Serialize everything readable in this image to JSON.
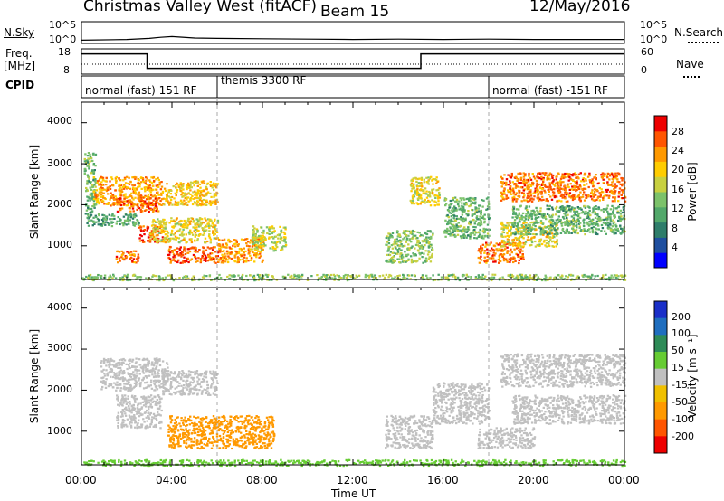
{
  "header": {
    "title": "Christmas Valley West (fitACF)",
    "beam": "Beam 15",
    "date": "12/May/2016"
  },
  "noise_panel": {
    "left_label": "N.Sky",
    "right_label": "N.Search",
    "left_ticks": [
      "10^5",
      "10^0"
    ],
    "right_ticks": [
      "10^5",
      "10^0"
    ]
  },
  "freq_panel": {
    "left_label_line1": "Freq.",
    "left_label_line2": "[MHz]",
    "right_label": "Nave",
    "left_ticks": [
      "18",
      "8"
    ],
    "right_ticks": [
      "60",
      "0"
    ]
  },
  "cpid": {
    "label": "CPID",
    "segments": [
      "normal (fast) 151 RF",
      "themis 3300 RF",
      "normal (fast) -151 RF"
    ]
  },
  "x_axis": {
    "label": "Time UT",
    "ticks": [
      "00:00",
      "04:00",
      "08:00",
      "12:00",
      "16:00",
      "20:00",
      "00:00"
    ]
  },
  "power_panel": {
    "ylabel": "Slant Range [km]",
    "yticks": [
      "4000",
      "3000",
      "2000",
      "1000"
    ],
    "colorbar_label": "Power [dB]",
    "colorbar_ticks": [
      "28",
      "24",
      "20",
      "16",
      "12",
      "8",
      "4"
    ],
    "colors": [
      "#0000ff",
      "#1f4f9f",
      "#2e7d6a",
      "#52a86a",
      "#7cc26a",
      "#c8d040",
      "#ffcc00",
      "#ff9900",
      "#ff5500",
      "#ee0000"
    ]
  },
  "velocity_panel": {
    "ylabel": "Slant Range [km]",
    "yticks": [
      "4000",
      "3000",
      "2000",
      "1000"
    ],
    "colorbar_label": "Velocity [m s⁻¹]",
    "colorbar_ticks": [
      "200",
      "100",
      "50",
      "15",
      "-15",
      "-50",
      "-100",
      "-200"
    ],
    "colors": [
      "#1a2fc8",
      "#1f6ebf",
      "#2e8b57",
      "#66cc33",
      "#c0c0c0",
      "#f0c000",
      "#ff9900",
      "#ff5500",
      "#ee0000"
    ]
  },
  "chart_data": [
    {
      "type": "line",
      "title": "Christmas Valley West (fitACF)",
      "xlabel": "",
      "ylabel": "N.Sky",
      "x_range_hours": [
        0,
        24
      ],
      "ylim_log10": [
        0,
        5
      ],
      "series": [
        {
          "name": "N.Sky",
          "x": [
            0,
            2,
            3,
            3.5,
            4,
            5,
            6,
            8,
            10,
            12,
            14,
            16,
            18,
            20,
            22,
            24
          ],
          "values": [
            0.4,
            0.6,
            0.9,
            1.2,
            1.4,
            1.0,
            0.9,
            0.8,
            0.7,
            0.6,
            0.7,
            0.6,
            0.7,
            0.6,
            0.6,
            0.6
          ]
        }
      ]
    },
    {
      "type": "line",
      "ylabel": "Freq. [MHz]",
      "x_range_hours": [
        0,
        24
      ],
      "ylim": [
        8,
        18
      ],
      "series": [
        {
          "name": "Freq.",
          "x": [
            0,
            2.9,
            2.9,
            15,
            15,
            24
          ],
          "values": [
            16.5,
            16.5,
            9.8,
            9.8,
            16.5,
            16.5
          ]
        }
      ]
    },
    {
      "type": "heatmap",
      "ylabel": "Slant Range [km]",
      "xlabel": "Time UT",
      "x_range_hours": [
        0,
        24
      ],
      "ylim": [
        180,
        4500
      ],
      "colorbar": "Power [dB]",
      "clim": [
        0,
        30
      ],
      "regions": [
        {
          "t": [
            0.1,
            0.6
          ],
          "r": [
            1700,
            3300
          ],
          "v": 12
        },
        {
          "t": [
            0.2,
            2.5
          ],
          "r": [
            1500,
            1800
          ],
          "v": 10
        },
        {
          "t": [
            0.5,
            3.5
          ],
          "r": [
            2000,
            2700
          ],
          "v": 22
        },
        {
          "t": [
            1.5,
            3.5
          ],
          "r": [
            1850,
            2200
          ],
          "v": 25
        },
        {
          "t": [
            2.5,
            3.6
          ],
          "r": [
            1100,
            1500
          ],
          "v": 26
        },
        {
          "t": [
            3.5,
            6.0
          ],
          "r": [
            2000,
            2600
          ],
          "v": 20
        },
        {
          "t": [
            3.0,
            6.0
          ],
          "r": [
            1100,
            1700
          ],
          "v": 18
        },
        {
          "t": [
            1.5,
            2.5
          ],
          "r": [
            600,
            900
          ],
          "v": 24
        },
        {
          "t": [
            3.8,
            6.0
          ],
          "r": [
            600,
            1000
          ],
          "v": 26
        },
        {
          "t": [
            6.0,
            8.0
          ],
          "r": [
            600,
            1200
          ],
          "v": 22
        },
        {
          "t": [
            7.5,
            9.0
          ],
          "r": [
            900,
            1500
          ],
          "v": 16
        },
        {
          "t": [
            13.4,
            15.5
          ],
          "r": [
            600,
            1400
          ],
          "v": 14
        },
        {
          "t": [
            14.5,
            15.8
          ],
          "r": [
            2000,
            2700
          ],
          "v": 18
        },
        {
          "t": [
            16.0,
            18.0
          ],
          "r": [
            1200,
            2200
          ],
          "v": 12
        },
        {
          "t": [
            17.5,
            19.5
          ],
          "r": [
            600,
            1100
          ],
          "v": 24
        },
        {
          "t": [
            18.5,
            21.0
          ],
          "r": [
            1000,
            1600
          ],
          "v": 18
        },
        {
          "t": [
            18.5,
            24.0
          ],
          "r": [
            2100,
            2800
          ],
          "v": 24
        },
        {
          "t": [
            19.0,
            24.0
          ],
          "r": [
            1300,
            2000
          ],
          "v": 12
        },
        {
          "t": [
            0.0,
            24.0
          ],
          "r": [
            180,
            320
          ],
          "v": 14
        }
      ]
    },
    {
      "type": "heatmap",
      "ylabel": "Slant Range [km]",
      "xlabel": "Time UT",
      "x_range_hours": [
        0,
        24
      ],
      "ylim": [
        180,
        4500
      ],
      "colorbar": "Velocity [m s⁻¹]",
      "clim": [
        -200,
        200
      ],
      "regions": [
        {
          "t": [
            0.8,
            3.8
          ],
          "r": [
            2000,
            2800
          ],
          "v": 0
        },
        {
          "t": [
            1.5,
            3.5
          ],
          "r": [
            1100,
            1900
          ],
          "v": 0
        },
        {
          "t": [
            3.5,
            6.0
          ],
          "r": [
            1900,
            2500
          ],
          "v": 0
        },
        {
          "t": [
            3.8,
            8.5
          ],
          "r": [
            600,
            1400
          ],
          "v": -60
        },
        {
          "t": [
            13.4,
            15.5
          ],
          "r": [
            600,
            1400
          ],
          "v": 0
        },
        {
          "t": [
            15.5,
            18.0
          ],
          "r": [
            1200,
            2200
          ],
          "v": 0
        },
        {
          "t": [
            17.5,
            20.0
          ],
          "r": [
            600,
            1100
          ],
          "v": 0
        },
        {
          "t": [
            18.5,
            24.0
          ],
          "r": [
            2100,
            2900
          ],
          "v": 0
        },
        {
          "t": [
            19.0,
            24.0
          ],
          "r": [
            1200,
            1900
          ],
          "v": 0
        },
        {
          "t": [
            0.0,
            24.0
          ],
          "r": [
            180,
            320
          ],
          "v": 30
        }
      ]
    }
  ]
}
